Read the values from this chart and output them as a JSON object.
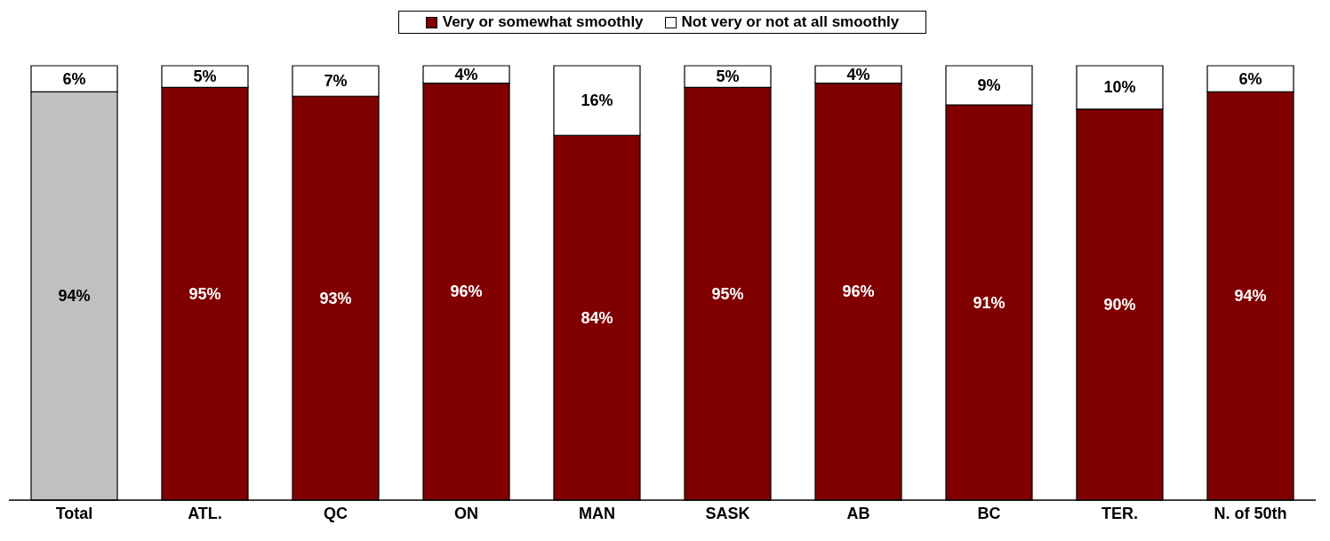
{
  "chart_data": {
    "type": "bar",
    "stacked": true,
    "categories": [
      "Total",
      "ATL.",
      "QC",
      "ON",
      "MAN",
      "SASK",
      "AB",
      "BC",
      "TER.",
      "N. of 50th"
    ],
    "series": [
      {
        "name": "Very or somewhat smoothly",
        "color": "#800000",
        "colors": [
          "#c0c0c0",
          "#800000",
          "#800000",
          "#800000",
          "#800000",
          "#800000",
          "#800000",
          "#800000",
          "#800000",
          "#800000"
        ],
        "values": [
          94,
          95,
          93,
          96,
          84,
          95,
          96,
          91,
          90,
          94
        ],
        "value_labels": [
          "94%",
          "95%",
          "93%",
          "96%",
          "84%",
          "95%",
          "96%",
          "91%",
          "90%",
          "94%"
        ]
      },
      {
        "name": "Not very or not at all smoothly",
        "color": "#ffffff",
        "values": [
          6,
          5,
          7,
          4,
          16,
          5,
          4,
          9,
          10,
          6
        ],
        "value_labels": [
          "6%",
          "5%",
          "7%",
          "4%",
          "16%",
          "5%",
          "4%",
          "9%",
          "10%",
          "6%"
        ]
      }
    ],
    "legend": "top",
    "tick_labels": "x",
    "grid": false
  }
}
